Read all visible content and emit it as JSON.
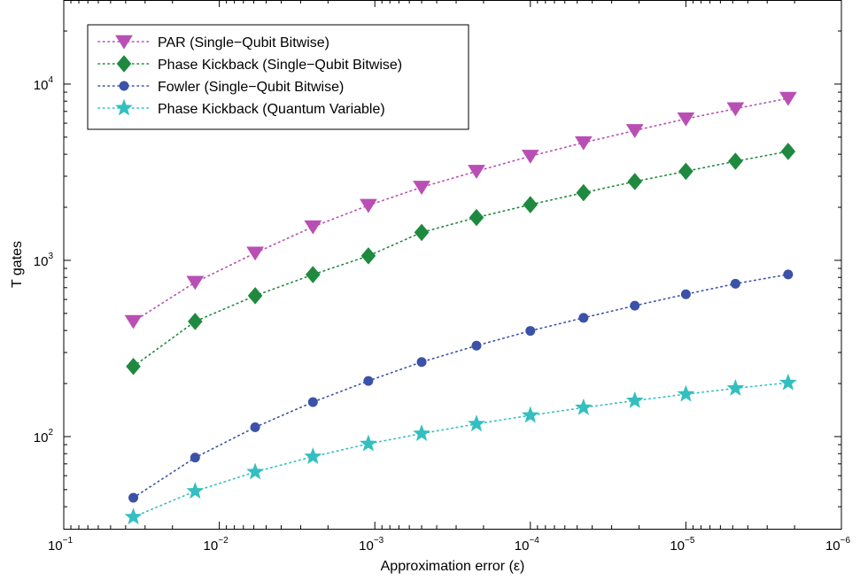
{
  "chart_data": {
    "type": "line",
    "title": "",
    "xlabel": "Approximation error (ε)",
    "ylabel": "T gates",
    "x_scale": "log",
    "y_scale": "log",
    "x_reversed": true,
    "xlim": [
      0.1,
      1e-06
    ],
    "ylim": [
      30,
      30000
    ],
    "x_ticks": [
      {
        "base": "10",
        "exp": "−1",
        "value": 0.1
      },
      {
        "base": "10",
        "exp": "−2",
        "value": 0.01
      },
      {
        "base": "10",
        "exp": "−3",
        "value": 0.001
      },
      {
        "base": "10",
        "exp": "−4",
        "value": 0.0001
      },
      {
        "base": "10",
        "exp": "−5",
        "value": 1e-05
      },
      {
        "base": "10",
        "exp": "−6",
        "value": 1e-06
      }
    ],
    "y_ticks": [
      {
        "base": "10",
        "exp": "2",
        "value": 100
      },
      {
        "base": "10",
        "exp": "3",
        "value": 1000
      },
      {
        "base": "10",
        "exp": "4",
        "value": 10000
      }
    ],
    "grid": false,
    "legend_position": "top-left",
    "x": [
      0.0357,
      0.0143,
      0.00588,
      0.0025,
      0.0011,
      0.0005,
      0.000222,
      0.0001,
      4.55e-05,
      2.13e-05,
      1e-05,
      4.8e-06,
      2.2e-06
    ],
    "series": [
      {
        "name": "PAR (Single−Qubit Bitwise)",
        "marker": "triangle-down",
        "color": "#b94fb4",
        "values": [
          450,
          750,
          1100,
          1550,
          2050,
          2600,
          3200,
          3900,
          4650,
          5450,
          6350,
          7250,
          8300
        ]
      },
      {
        "name": "Phase Kickback (Single−Qubit Bitwise)",
        "marker": "diamond",
        "color": "#1f8a3f",
        "values": [
          250,
          450,
          630,
          830,
          1060,
          1440,
          1750,
          2070,
          2420,
          2800,
          3200,
          3650,
          4150
        ]
      },
      {
        "name": "Fowler (Single−Qubit Bitwise)",
        "marker": "circle",
        "color": "#3b52a8",
        "values": [
          45,
          76,
          113,
          157,
          207,
          265,
          328,
          398,
          472,
          553,
          642,
          737,
          832
        ]
      },
      {
        "name": "Phase Kickback (Quantum Variable)",
        "marker": "star",
        "color": "#33bfbf",
        "values": [
          35,
          49,
          63,
          77,
          91,
          104,
          118,
          132,
          146,
          160,
          174,
          188,
          202
        ]
      }
    ]
  }
}
